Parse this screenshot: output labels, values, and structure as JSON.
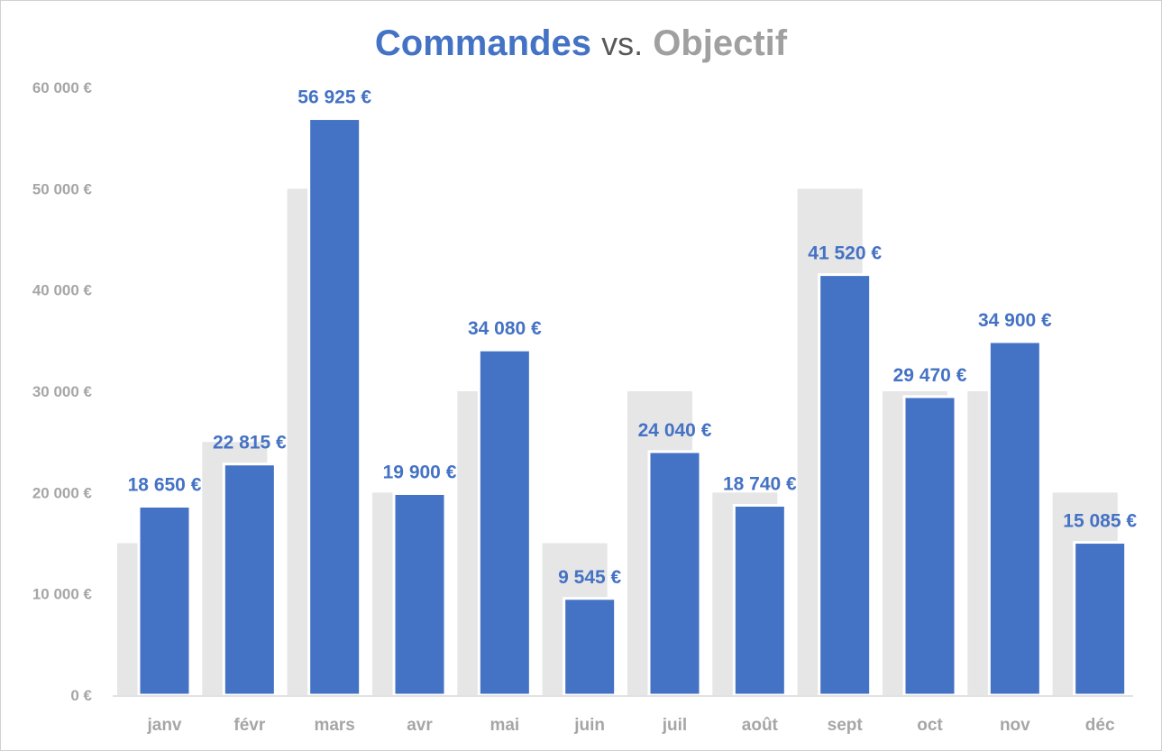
{
  "chart_data": {
    "type": "bar",
    "title": {
      "part1": "Commandes",
      "part2": "vs.",
      "part3": "Objectif"
    },
    "xlabel": "",
    "ylabel": "",
    "ylim": [
      0,
      60000
    ],
    "ytick_labels": [
      "0 €",
      "10 000 €",
      "20 000 €",
      "30 000 €",
      "40 000 €",
      "50 000 €",
      "60 000 €"
    ],
    "ytick_values": [
      0,
      10000,
      20000,
      30000,
      40000,
      50000,
      60000
    ],
    "categories": [
      "janv",
      "févr",
      "mars",
      "avr",
      "mai",
      "juin",
      "juil",
      "août",
      "sept",
      "oct",
      "nov",
      "déc"
    ],
    "series": [
      {
        "name": "Objectif",
        "role": "target",
        "color": "#E7E6E6",
        "values": [
          15000,
          25000,
          50000,
          20000,
          30000,
          15000,
          30000,
          20000,
          50000,
          30000,
          30000,
          20000
        ]
      },
      {
        "name": "Commandes",
        "role": "actual",
        "color": "#4472C4",
        "values": [
          18650,
          22815,
          56925,
          19900,
          34080,
          9545,
          24040,
          18740,
          41520,
          29470,
          34900,
          15085
        ],
        "labels": [
          "18 650 €",
          "22 815 €",
          "56 925 €",
          "19 900 €",
          "34 080 €",
          "9 545 €",
          "24 040 €",
          "18 740 €",
          "41 520 €",
          "29 470 €",
          "34 900 €",
          "15 085 €"
        ]
      }
    ],
    "grid": false,
    "legend": "none"
  }
}
